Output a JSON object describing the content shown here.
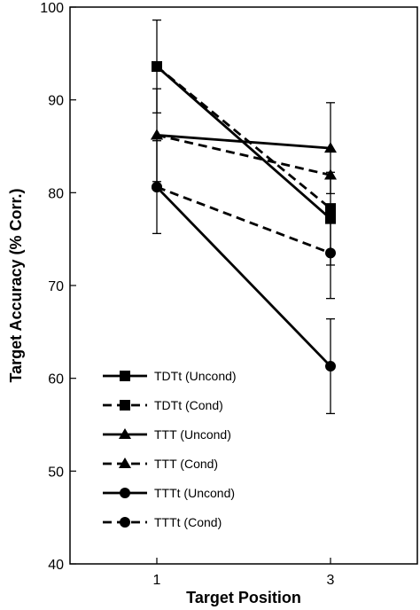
{
  "chart_data": {
    "type": "line",
    "xlabel": "Target Position",
    "ylabel": "Target Accuracy (% Corr.)",
    "categories": [
      "1",
      "3"
    ],
    "x": [
      1,
      3
    ],
    "ylim": [
      40,
      100
    ],
    "yticks": [
      40,
      50,
      60,
      70,
      80,
      90,
      100
    ],
    "grid": false,
    "legend_position": "bottom-left",
    "series": [
      {
        "name": "TDTt (Uncond)",
        "values": [
          93.6,
          77.2
        ],
        "marker": "square",
        "dash": "solid",
        "error": [
          5.0,
          5.0
        ]
      },
      {
        "name": "TDTt (Cond)",
        "values": [
          93.6,
          78.3
        ],
        "marker": "square",
        "dash": "dashed",
        "error": [
          null,
          null
        ]
      },
      {
        "name": "TTT (Uncond)",
        "values": [
          86.2,
          84.8
        ],
        "marker": "triangle",
        "dash": "solid",
        "error": [
          5.0,
          4.9
        ]
      },
      {
        "name": "TTT (Cond)",
        "values": [
          86.2,
          81.9
        ],
        "marker": "triangle",
        "dash": "dashed",
        "error": [
          null,
          null
        ]
      },
      {
        "name": "TTTt (Uncond)",
        "values": [
          80.6,
          61.3
        ],
        "marker": "circle",
        "dash": "solid",
        "error": [
          5.0,
          5.1
        ]
      },
      {
        "name": "TTTt (Cond)",
        "values": [
          80.6,
          73.5
        ],
        "marker": "circle",
        "dash": "dashed",
        "error": [
          null,
          4.9
        ]
      }
    ]
  }
}
